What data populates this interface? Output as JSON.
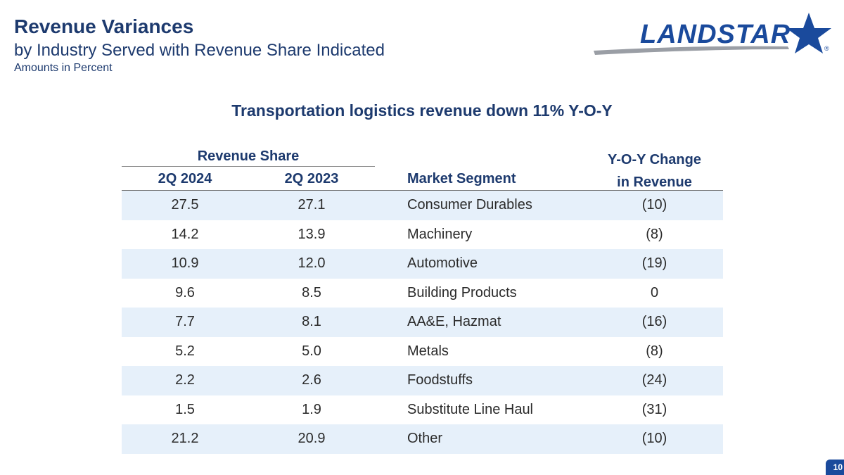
{
  "header": {
    "title": "Revenue Variances",
    "subtitle": "by Industry Served with Revenue Share Indicated",
    "units": "Amounts in Percent"
  },
  "logo": {
    "text": "LANDSTAR",
    "registered": "®"
  },
  "headline": "Transportation logistics revenue down 11% Y-O-Y",
  "table": {
    "group_header": "Revenue Share",
    "columns": [
      "2Q 2024",
      "2Q 2023",
      "Market Segment",
      "Y-O-Y Change",
      "in Revenue"
    ],
    "rows": [
      [
        "27.5",
        "27.1",
        "Consumer Durables",
        "(10)"
      ],
      [
        "14.2",
        "13.9",
        "Machinery",
        "(8)"
      ],
      [
        "10.9",
        "12.0",
        "Automotive",
        "(19)"
      ],
      [
        "9.6",
        "8.5",
        "Building Products",
        "0"
      ],
      [
        "7.7",
        "8.1",
        "AA&E, Hazmat",
        "(16)"
      ],
      [
        "5.2",
        "5.0",
        "Metals",
        "(8)"
      ],
      [
        "2.2",
        "2.6",
        "Foodstuffs",
        "(24)"
      ],
      [
        "1.5",
        "1.9",
        "Substitute Line Haul",
        "(31)"
      ],
      [
        "21.2",
        "20.9",
        "Other",
        "(10)"
      ]
    ]
  },
  "page_number": "10",
  "colors": {
    "brand_navy": "#1d3a6e",
    "brand_blue": "#1a4a9c",
    "row_alt": "#e6f0fa"
  }
}
